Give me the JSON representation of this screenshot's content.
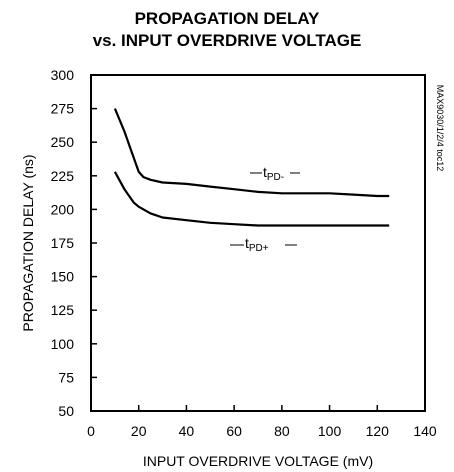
{
  "chart_data": {
    "type": "line",
    "title": "PROPAGATION DELAY",
    "subtitle": "vs. INPUT OVERDRIVE VOLTAGE",
    "xlabel": "INPUT OVERDRIVE VOLTAGE (mV)",
    "ylabel": "PROPAGATION DELAY (ns)",
    "xlim": [
      0,
      140
    ],
    "ylim": [
      50,
      300
    ],
    "xticks": [
      0,
      20,
      40,
      60,
      80,
      100,
      120,
      140
    ],
    "yticks": [
      50,
      75,
      100,
      125,
      150,
      175,
      200,
      225,
      250,
      275,
      300
    ],
    "grid": false,
    "side_note": "MAX9030/1/2/4 toc12",
    "series": [
      {
        "name": "tPD-",
        "label_main": "t",
        "label_sub": "PD-",
        "x": [
          10,
          14,
          18,
          20,
          22,
          25,
          30,
          40,
          50,
          60,
          70,
          80,
          90,
          100,
          110,
          120,
          125
        ],
        "y": [
          275,
          258,
          238,
          228,
          224,
          222,
          220,
          219,
          217,
          215,
          213,
          212,
          212,
          212,
          211,
          210,
          210
        ]
      },
      {
        "name": "tPD+",
        "label_main": "t",
        "label_sub": "PD+",
        "x": [
          10,
          14,
          18,
          20,
          22,
          25,
          30,
          40,
          50,
          60,
          70,
          80,
          90,
          100,
          110,
          120,
          125
        ],
        "y": [
          228,
          215,
          205,
          202,
          200,
          197,
          194,
          192,
          190,
          189,
          188,
          188,
          188,
          188,
          188,
          188,
          188
        ]
      }
    ]
  }
}
